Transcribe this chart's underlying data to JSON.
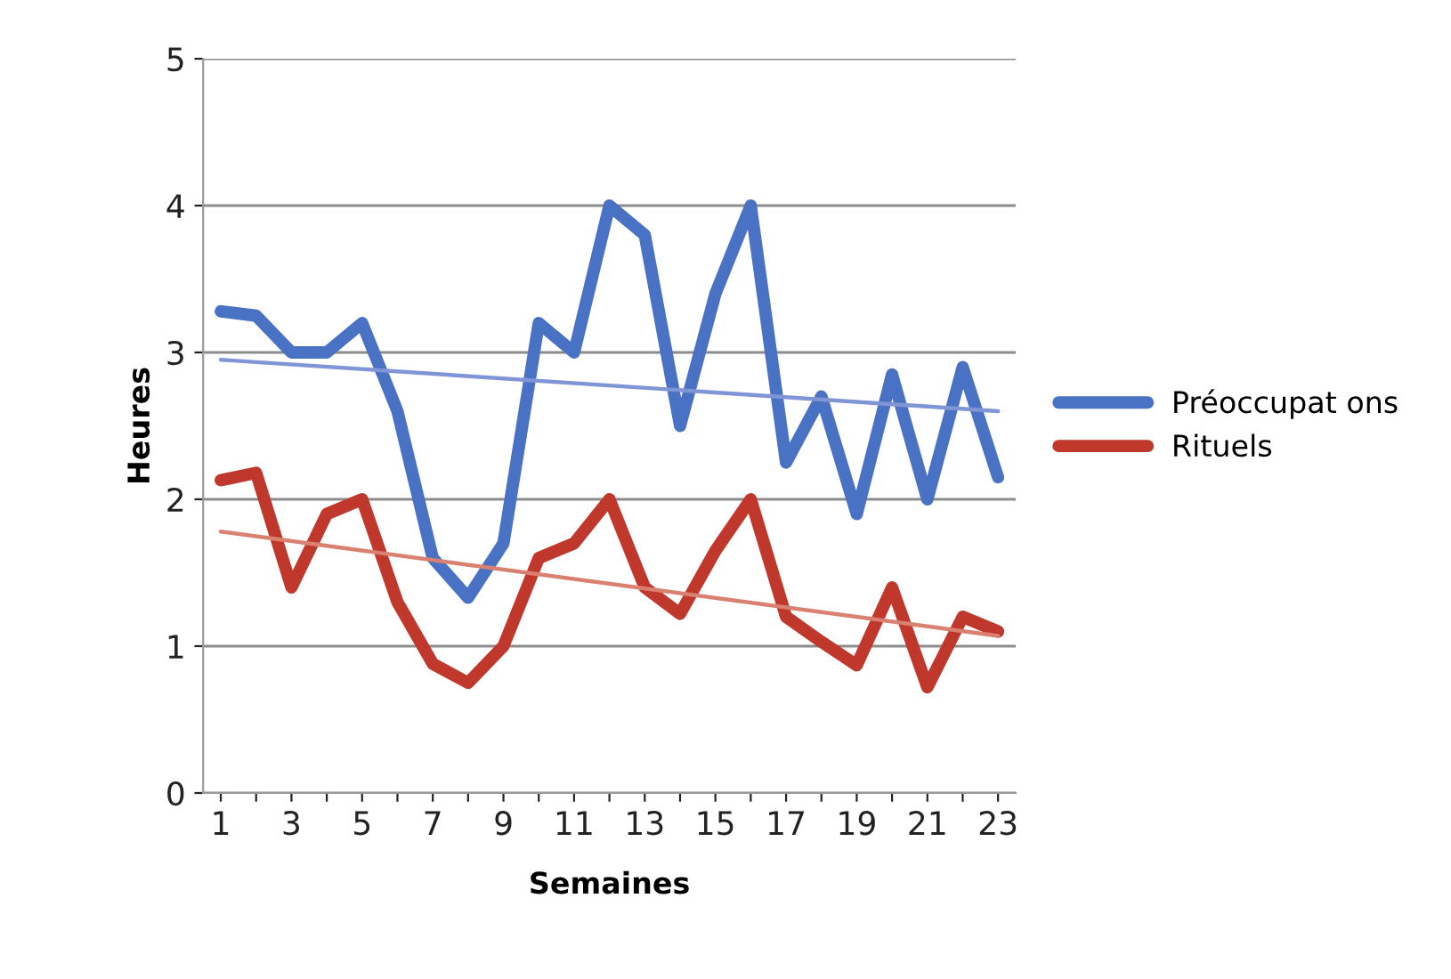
{
  "chart_data": {
    "type": "line",
    "xlabel": "Semaines",
    "ylabel": "Heures",
    "x": [
      1,
      2,
      3,
      4,
      5,
      6,
      7,
      8,
      9,
      10,
      11,
      12,
      13,
      14,
      15,
      16,
      17,
      18,
      19,
      20,
      21,
      22,
      23
    ],
    "series": [
      {
        "name": "Préoccupat ons",
        "color": "#4a72c4",
        "values": [
          3.28,
          3.25,
          3.0,
          3.0,
          3.2,
          2.6,
          1.6,
          1.33,
          1.7,
          3.2,
          3.0,
          4.0,
          3.8,
          2.5,
          3.4,
          4.0,
          2.25,
          2.7,
          1.9,
          2.85,
          2.0,
          2.9,
          2.15
        ]
      },
      {
        "name": "Rituels",
        "color": "#c0382b",
        "values": [
          2.13,
          2.18,
          1.4,
          1.9,
          2.0,
          1.3,
          0.88,
          0.75,
          1.0,
          1.6,
          1.7,
          2.0,
          1.4,
          1.22,
          1.65,
          2.0,
          1.2,
          1.03,
          0.87,
          1.4,
          0.72,
          1.2,
          1.1
        ]
      },
      {
        "type": "line",
        "color": "#7f95d6",
        "values": [
          2.95,
          null,
          null,
          null,
          null,
          null,
          null,
          null,
          null,
          null,
          null,
          null,
          null,
          null,
          null,
          null,
          null,
          null,
          null,
          null,
          null,
          null,
          2.6
        ]
      },
      {
        "type": "line",
        "color": "#d98070",
        "values": [
          1.78,
          null,
          null,
          null,
          null,
          null,
          null,
          null,
          null,
          null,
          null,
          null,
          null,
          null,
          null,
          null,
          null,
          null,
          null,
          null,
          null,
          null,
          1.07
        ]
      }
    ],
    "xlim": [
      0.5,
      23.5
    ],
    "xticks": [
      1,
      {
        "value": 2,
        "label": null
      },
      3,
      {
        "value": 4,
        "label": null
      },
      5,
      {
        "value": 6,
        "label": null
      },
      7,
      {
        "value": 8,
        "label": null
      },
      9,
      {
        "value": 10,
        "label": null
      },
      11,
      {
        "value": 12,
        "label": null
      },
      13,
      {
        "value": 14,
        "label": null
      },
      15,
      {
        "value": 16,
        "label": null
      },
      17,
      {
        "value": 18,
        "label": null
      },
      19,
      {
        "value": 20,
        "label": null
      },
      21,
      {
        "value": 22,
        "label": null
      },
      23
    ],
    "ylim": [
      0,
      5
    ],
    "yticks": [
      0,
      1,
      2,
      3,
      4,
      5
    ],
    "grid": "y",
    "legend": "right",
    "line_style": "solid",
    "marker": "none"
  }
}
